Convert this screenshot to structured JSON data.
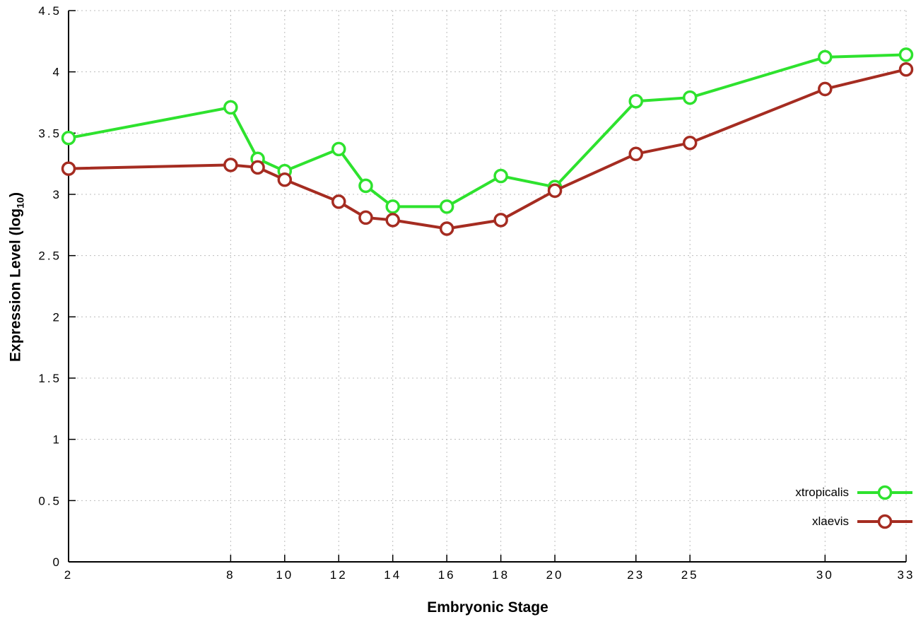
{
  "chart": {
    "background": "#ffffff",
    "grid_color": "#bcbcbc"
  },
  "chart_data": {
    "type": "line",
    "title": "",
    "xlabel": "Embryonic Stage",
    "ylabel": "Expression Level (log10)",
    "ylabel_display": {
      "prefix": "Expression Level (log",
      "sub": "10",
      "suffix": ")"
    },
    "x": [
      2,
      8,
      9,
      10,
      12,
      13,
      14,
      16,
      18,
      20,
      23,
      25,
      30,
      33
    ],
    "series": [
      {
        "name": "xtropicalis",
        "color": "#2ee22e",
        "values": [
          3.46,
          3.71,
          3.29,
          3.19,
          3.37,
          3.07,
          2.9,
          2.9,
          3.15,
          3.06,
          3.76,
          3.79,
          4.12,
          4.14
        ]
      },
      {
        "name": "xlaevis",
        "color": "#a52c21",
        "values": [
          3.21,
          3.24,
          3.22,
          3.12,
          2.94,
          2.81,
          2.79,
          2.72,
          2.79,
          3.03,
          3.33,
          3.42,
          3.86,
          4.02
        ]
      }
    ],
    "xticks": [
      2,
      8,
      10,
      12,
      14,
      16,
      18,
      20,
      23,
      25,
      30,
      33
    ],
    "yticks": [
      0,
      0.5,
      1,
      1.5,
      2,
      2.5,
      3,
      3.5,
      4,
      4.5
    ],
    "xlim": [
      2,
      33
    ],
    "ylim": [
      0,
      4.5
    ],
    "grid": true,
    "legend_position": "bottom-right",
    "marker": "open-circle"
  }
}
